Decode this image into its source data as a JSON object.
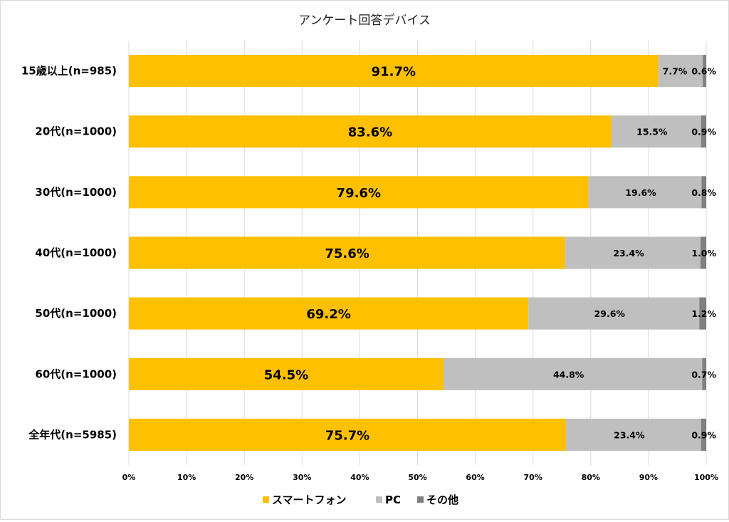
{
  "chart_data": {
    "type": "bar",
    "orientation": "horizontal",
    "stacked": "percent",
    "title": "アンケート回答デバイス",
    "categories": [
      "15歳以上(n=985)",
      "20代(n=1000)",
      "30代(n=1000)",
      "40代(n=1000)",
      "50代(n=1000)",
      "60代(n=1000)",
      "全年代(n=5985)"
    ],
    "series": [
      {
        "name": "スマートフォン",
        "color": "#FFC000",
        "values": [
          91.7,
          83.6,
          79.6,
          75.6,
          69.2,
          54.5,
          75.7
        ]
      },
      {
        "name": "PC",
        "color": "#BFBFBF",
        "values": [
          7.7,
          15.5,
          19.6,
          23.4,
          29.6,
          44.8,
          23.4
        ]
      },
      {
        "name": "その他",
        "color": "#808080",
        "values": [
          0.6,
          0.9,
          0.8,
          1.0,
          1.2,
          0.7,
          0.9
        ]
      }
    ],
    "data_labels": [
      [
        "91.7%",
        "7.7%",
        "0.6%"
      ],
      [
        "83.6%",
        "15.5%",
        "0.9%"
      ],
      [
        "79.6%",
        "19.6%",
        "0.8%"
      ],
      [
        "75.6%",
        "23.4%",
        "1.0%"
      ],
      [
        "69.2%",
        "29.6%",
        "1.2%"
      ],
      [
        "54.5%",
        "44.8%",
        "0.7%"
      ],
      [
        "75.7%",
        "23.4%",
        "0.9%"
      ]
    ],
    "x_ticks": [
      "0%",
      "10%",
      "20%",
      "30%",
      "40%",
      "50%",
      "60%",
      "70%",
      "80%",
      "90%",
      "100%"
    ],
    "xlim": [
      0,
      100
    ],
    "grid": true,
    "legend_position": "bottom"
  }
}
